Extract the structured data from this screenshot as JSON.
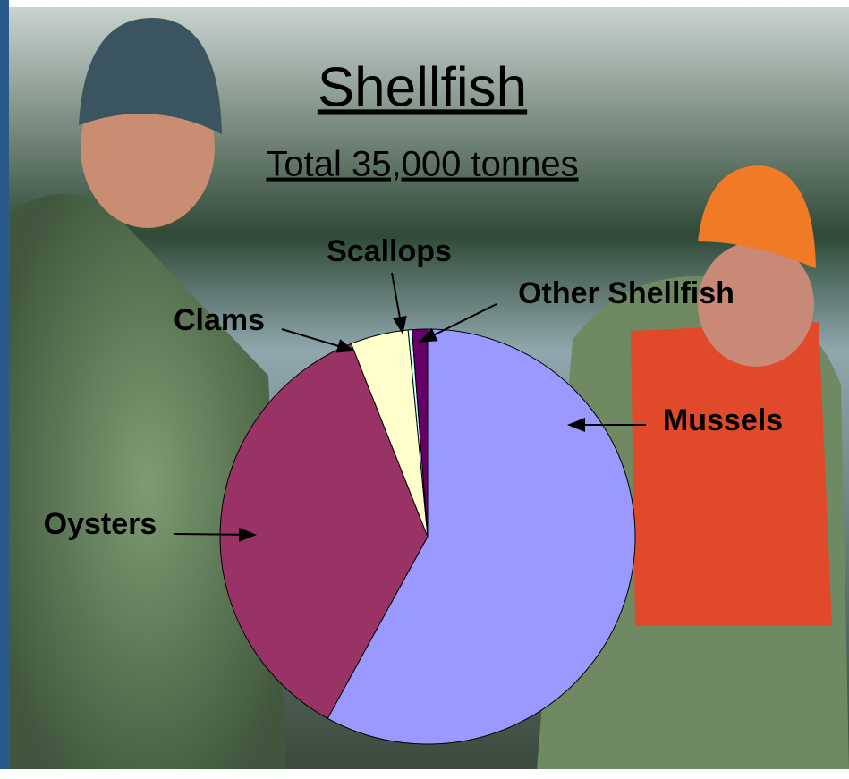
{
  "chart_data": {
    "type": "pie",
    "title": "Shellfish",
    "subtitle": "Total 35,000 tonnes",
    "categories": [
      "Mussels",
      "Oysters",
      "Clams",
      "Scallops",
      "Other Shellfish"
    ],
    "values": [
      58,
      36,
      4.5,
      0.3,
      1.2
    ],
    "colors": [
      "#9999ff",
      "#993366",
      "#ffffcc",
      "#ccffff",
      "#660066"
    ]
  }
}
